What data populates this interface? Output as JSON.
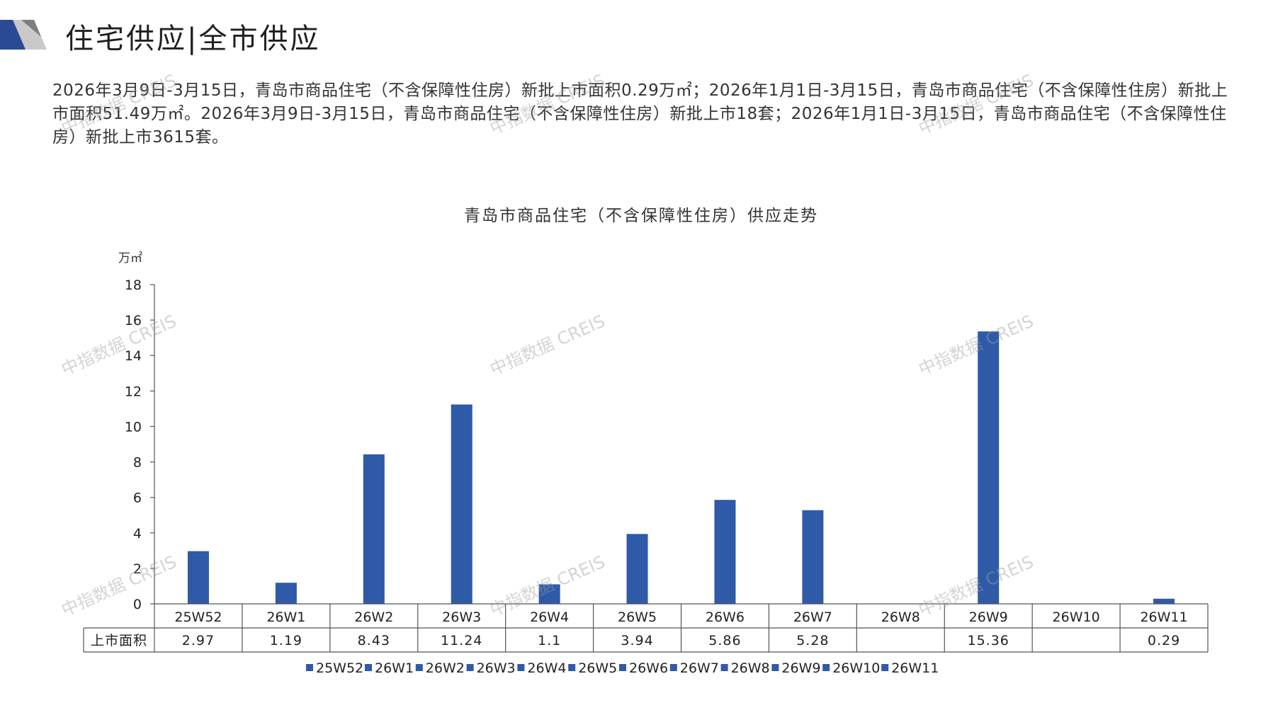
{
  "header": {
    "title": "住宅供应|全市供应"
  },
  "summary": "2026年3月9日-3月15日，青岛市商品住宅（不含保障性住房）新批上市面积0.29万㎡；2026年1月1日-3月15日，青岛市商品住宅（不含保障性住房）新批上市面积51.49万㎡。2026年3月9日-3月15日，青岛市商品住宅（不含保障性住房）新批上市18套；2026年1月1日-3月15日，青岛市商品住宅（不含保障性住房）新批上市3615套。",
  "watermark": "中指数据 CREIS",
  "colors": {
    "bar": "#2f5aa8",
    "accent_dark": "#2b4a94",
    "accent_gray": "#c9c9c9"
  },
  "chart_data": {
    "type": "bar",
    "title": "青岛市商品住宅（不含保障性住房）供应走势",
    "ylabel": "万㎡",
    "ylim": [
      0,
      18
    ],
    "yticks": [
      0,
      2,
      4,
      6,
      8,
      10,
      12,
      14,
      16,
      18
    ],
    "categories": [
      "25W52",
      "26W1",
      "26W2",
      "26W3",
      "26W4",
      "26W5",
      "26W6",
      "26W7",
      "26W8",
      "26W9",
      "26W10",
      "26W11"
    ],
    "series": [
      {
        "name": "上市面积",
        "values": [
          2.97,
          1.19,
          8.43,
          11.24,
          1.1,
          3.94,
          5.86,
          5.28,
          null,
          15.36,
          null,
          0.29
        ],
        "labels": [
          "2.97",
          "1.19",
          "8.43",
          "11.24",
          "1.1",
          "3.94",
          "5.86",
          "5.28",
          "",
          "15.36",
          "",
          "0.29"
        ]
      }
    ],
    "legend": {
      "position": "bottom",
      "entries": [
        "25W52",
        "26W1",
        "26W2",
        "26W3",
        "26W4",
        "26W5",
        "26W6",
        "26W7",
        "26W8",
        "26W9",
        "26W10",
        "26W11"
      ]
    },
    "grid": false,
    "data_table": true
  }
}
